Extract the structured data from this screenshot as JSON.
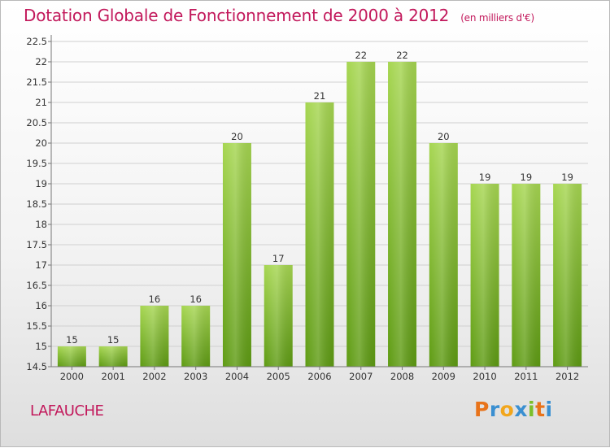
{
  "title": "Dotation Globale de Fonctionnement de 2000 à 2012",
  "unit": "(en milliers d'€)",
  "commune": "LAFAUCHE",
  "logo": {
    "letters": [
      "P",
      "r",
      "o",
      "x",
      "i",
      "t",
      "i"
    ],
    "colors": [
      "#e8731a",
      "#3a8fd1",
      "#f2a61c",
      "#3a8fd1",
      "#7bbf2a",
      "#e8731a",
      "#3a8fd1"
    ]
  },
  "colors": {
    "bar_light": "#a6d651",
    "bar_dark": "#5e9b13",
    "title": "#c2185b"
  },
  "chart_data": {
    "type": "bar",
    "categories": [
      "2000",
      "2001",
      "2002",
      "2003",
      "2004",
      "2005",
      "2006",
      "2007",
      "2008",
      "2009",
      "2010",
      "2011",
      "2012"
    ],
    "values": [
      15,
      15,
      16,
      16,
      20,
      17,
      21,
      22,
      22,
      20,
      19,
      19,
      19
    ],
    "data_labels": [
      "15",
      "15",
      "16",
      "16",
      "20",
      "17",
      "21",
      "22",
      "22",
      "20",
      "19",
      "19",
      "19"
    ],
    "yticks": [
      "14.5",
      "15",
      "15.5",
      "16",
      "16.5",
      "17",
      "17.5",
      "18",
      "18.5",
      "19",
      "19.5",
      "20",
      "20.5",
      "21",
      "21.5",
      "22",
      "22.5"
    ],
    "ylim": [
      14.5,
      22.5
    ],
    "grid": true,
    "xlabel": "",
    "ylabel": ""
  }
}
